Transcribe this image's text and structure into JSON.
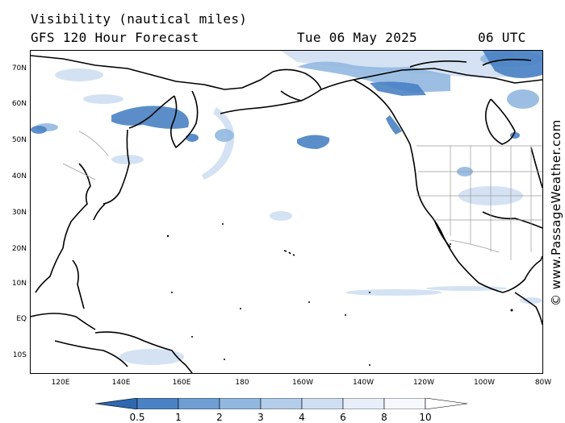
{
  "header": {
    "title": "Visibility (nautical miles)",
    "subtitle": "GFS 120 Hour Forecast",
    "date": "Tue 06 May 2025",
    "time": "06 UTC"
  },
  "axes": {
    "y_labels": [
      "70N",
      "60N",
      "50N",
      "40N",
      "30N",
      "20N",
      "10N",
      "EQ",
      "10S"
    ],
    "x_labels": [
      "120E",
      "140E",
      "160E",
      "180",
      "160W",
      "140W",
      "120W",
      "100W",
      "80W"
    ]
  },
  "credit": "© www.PassageWeather.com",
  "legend": {
    "labels": [
      "0.5",
      "1",
      "2",
      "3",
      "4",
      "6",
      "8",
      "10"
    ],
    "colors": [
      "#2e68b0",
      "#4a82c4",
      "#6e9ed4",
      "#92b8e0",
      "#b3cdea",
      "#cfdff2",
      "#e8eff9",
      "#ffffff"
    ]
  },
  "colors": {
    "coast": "#000000",
    "borders": "#9a9a9a",
    "low_vis": "#4a82c4",
    "mid_vis": "#92b8e0",
    "high_vis": "#cfdff2"
  }
}
